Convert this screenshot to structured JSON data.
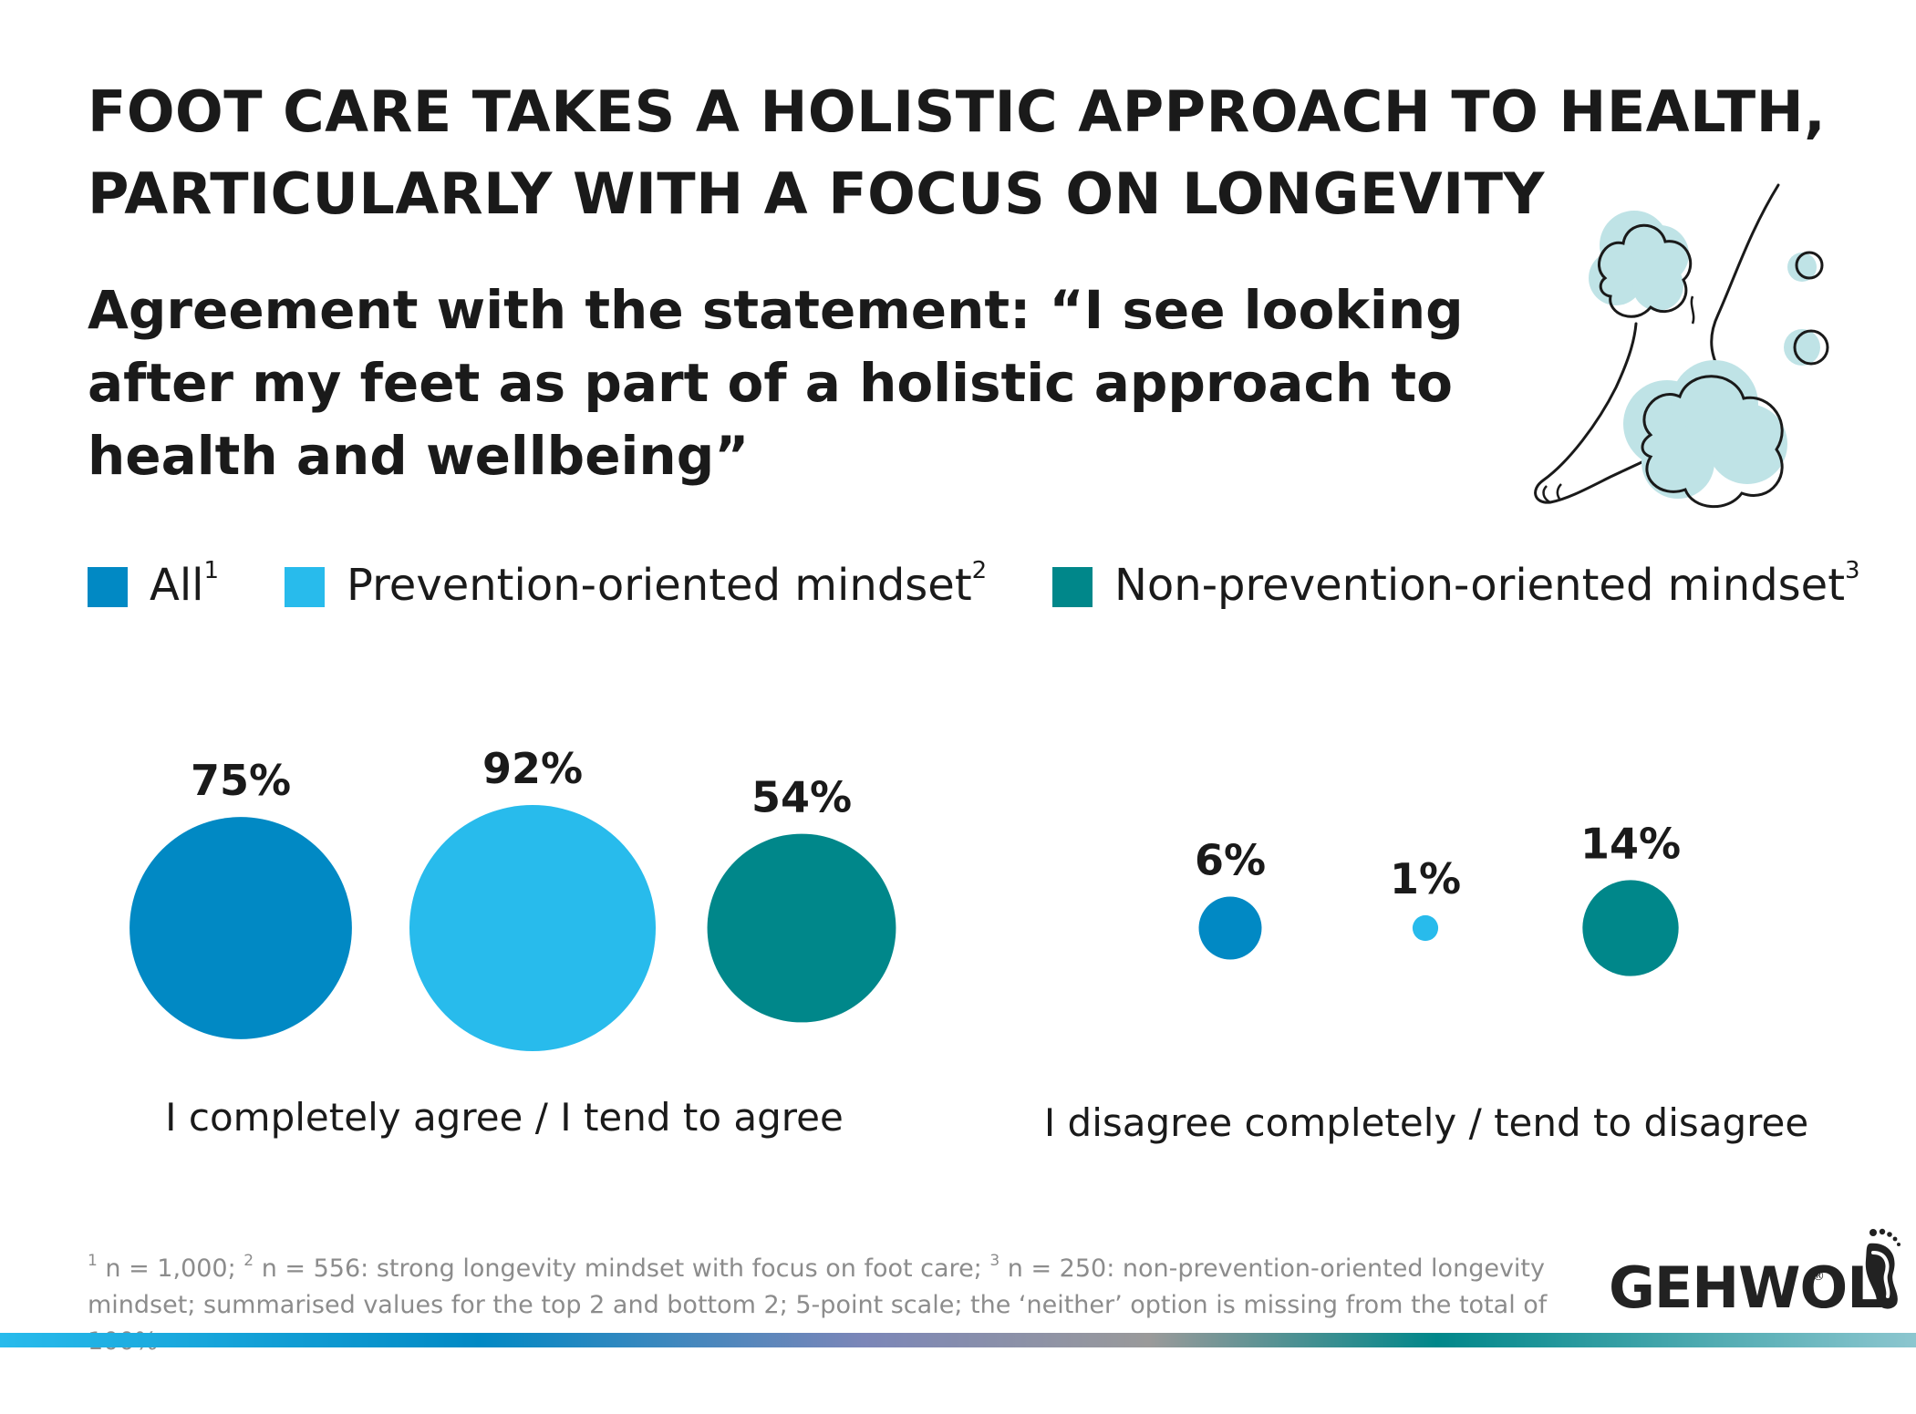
{
  "header": {
    "title_line1": "FOOT CARE TAKES A HOLISTIC APPROACH TO HEALTH,",
    "title_line2": "PARTICULARLY WITH A FOCUS ON LONGEVITY",
    "subtitle": "Agreement with the statement: “I see looking after my feet as part of a holistic approach to health and wellbeing”"
  },
  "legend": {
    "items": [
      {
        "label": "All",
        "sup": "1",
        "color": "#0189C4"
      },
      {
        "label": "Prevention-oriented mindset",
        "sup": "2",
        "color": "#28BBEC"
      },
      {
        "label": "Non-prevention-oriented mindset",
        "sup": "3",
        "color": "#00878A"
      }
    ]
  },
  "chart_data": {
    "type": "bubble",
    "title": "Agreement with the statement: “I see looking after my feet as part of a holistic approach to health and wellbeing”",
    "value_unit": "%",
    "series": [
      {
        "name": "All",
        "color": "#0189C4",
        "values": [
          75,
          6
        ]
      },
      {
        "name": "Prevention-oriented mindset",
        "color": "#28BBEC",
        "values": [
          92,
          1
        ]
      },
      {
        "name": "Non-prevention-oriented mindset",
        "color": "#00878A",
        "values": [
          54,
          14
        ]
      }
    ],
    "categories": [
      "I completely agree / I tend to agree",
      "I disagree completely / tend to disagree"
    ],
    "data_labels": [
      [
        "75%",
        "6%"
      ],
      [
        "92%",
        "1%"
      ],
      [
        "54%",
        "14%"
      ]
    ]
  },
  "footnote": {
    "sup1": "1",
    "text1": " n = 1,000; ",
    "sup2": "2",
    "text2": " n = 556: strong longevity mindset with focus on foot care; ",
    "sup3": "3",
    "text3": " n = 250: non-prevention-oriented longevity mindset; summarised values for the top 2 and bottom 2; 5-point scale; the ‘neither’ option is missing from the total of 100%"
  },
  "brand": {
    "logo_text": "GEHWOL",
    "registered_mark": "®"
  },
  "icons": {
    "logo_icon": "footprint-icon",
    "illustration": "foot-with-foam-bubbles-illustration"
  }
}
